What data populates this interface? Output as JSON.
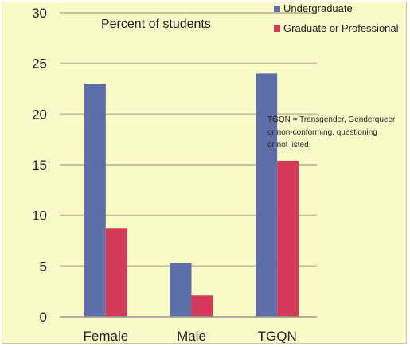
{
  "chart_data": {
    "type": "bar",
    "title": "Percent of students",
    "categories": [
      "Female",
      "Male",
      "TGQN"
    ],
    "series": [
      {
        "name": "Undergraduate",
        "values": [
          23.0,
          5.3,
          24.0
        ]
      },
      {
        "name": "Graduate or Professional",
        "values": [
          8.7,
          2.1,
          15.4
        ]
      }
    ],
    "ylim": [
      0,
      30
    ],
    "yticks": [
      "0",
      "5",
      "10",
      "15",
      "20",
      "25",
      "30"
    ],
    "grid": true,
    "legend_placement": "top-right",
    "colors": [
      "#5e6fa8",
      "#d63a5a"
    ],
    "annotation": [
      "TGQN = Transgender, Genderqueer",
      "or non-conforming, questioning",
      "or not listed."
    ]
  }
}
